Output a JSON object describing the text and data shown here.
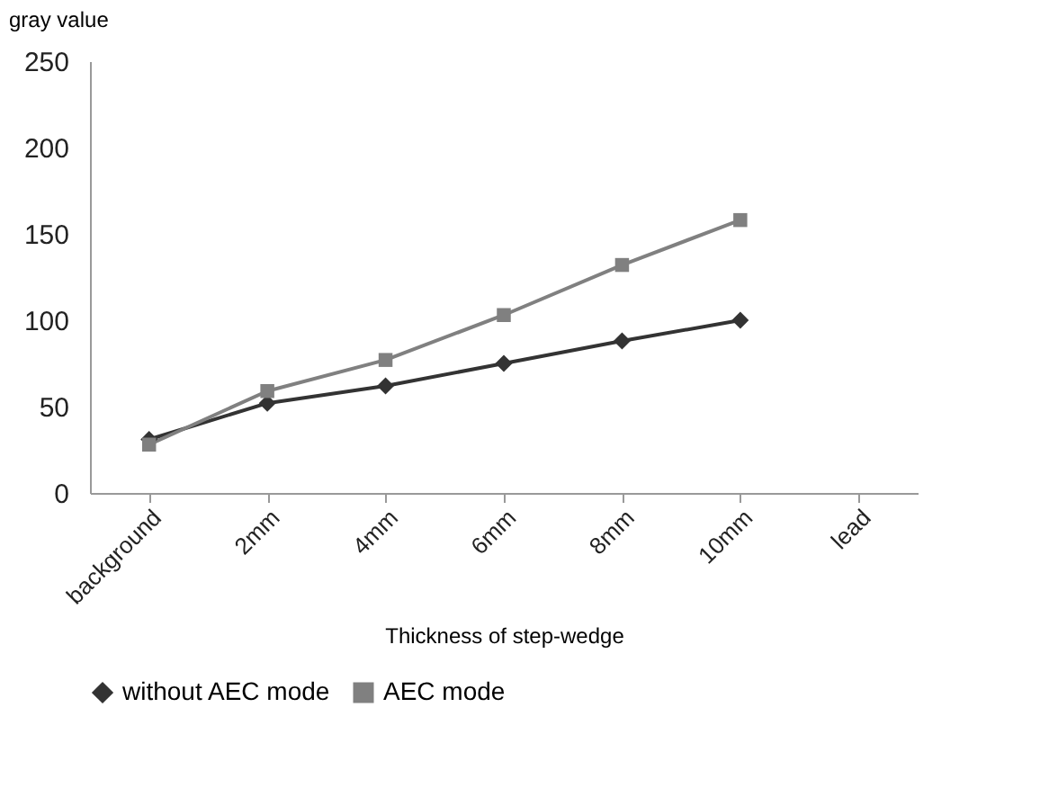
{
  "chart_data": {
    "type": "line",
    "ylabel": "gray value",
    "xlabel": "Thickness of step-wedge",
    "categories": [
      "background",
      "2mm",
      "4mm",
      "6mm",
      "8mm",
      "10mm",
      "lead"
    ],
    "series": [
      {
        "name": "without AEC mode",
        "color": "#333333",
        "marker": "diamond",
        "values": [
          31,
          52,
          62,
          75,
          88,
          100,
          null
        ]
      },
      {
        "name": "AEC mode",
        "color": "#808080",
        "marker": "square",
        "values": [
          28,
          59,
          77,
          103,
          132,
          158,
          null
        ]
      }
    ],
    "ylim": [
      0,
      250
    ],
    "yticks": [
      0,
      50,
      100,
      150,
      200,
      250
    ],
    "grid": false,
    "legend": "bottom",
    "line_style": "solid"
  }
}
